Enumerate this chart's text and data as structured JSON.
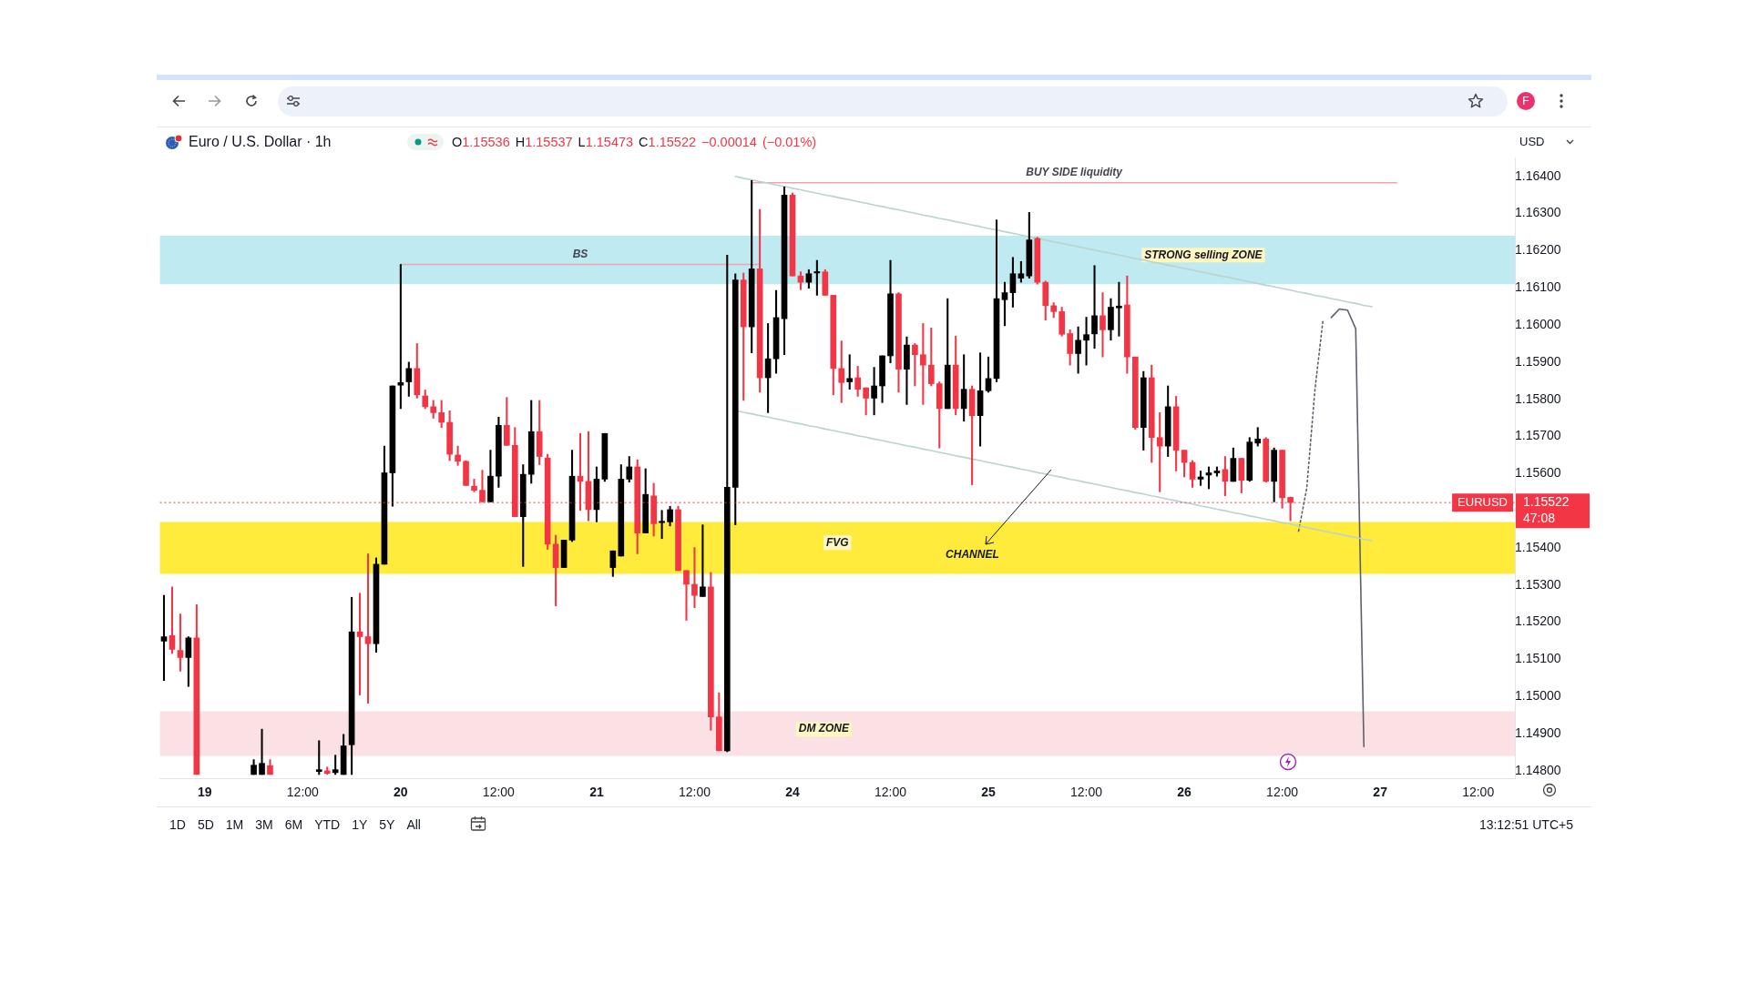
{
  "chart_data": {
    "type": "candlestick",
    "title": "Euro / U.S. Dollar · 1h",
    "subtitle": "O1.15536 H1.15537 L1.15473 C1.15522 −0.00014 (−0.01%)",
    "ylabel": "USD",
    "categories": [
      null,
      null,
      null,
      null,
      null,
      "19",
      null,
      null,
      null,
      null,
      null,
      null,
      null,
      null,
      null,
      null,
      null,
      "12:00",
      null,
      null,
      null,
      null,
      null,
      null,
      null,
      null,
      null,
      null,
      null,
      "20",
      null,
      null,
      null,
      null,
      null,
      null,
      null,
      null,
      null,
      null,
      null,
      "12:00",
      null,
      null,
      null,
      null,
      null,
      null,
      null,
      null,
      null,
      null,
      null,
      "21",
      null,
      null,
      null,
      null,
      null,
      null,
      null,
      null,
      null,
      null,
      null,
      "12:00",
      null,
      null,
      null,
      null,
      null,
      null,
      null,
      null,
      null,
      null,
      null,
      "24",
      null,
      null,
      null,
      null,
      null,
      null,
      null,
      null,
      null,
      null,
      null,
      "12:00",
      null,
      null,
      null,
      null,
      null,
      null,
      null,
      null,
      null,
      null,
      null,
      "25",
      null,
      null,
      null,
      null,
      null,
      null,
      null,
      null,
      null,
      null,
      null,
      "12:00",
      null,
      null,
      null,
      null,
      null,
      null,
      null,
      null,
      null,
      null,
      null,
      "26",
      null,
      null,
      null,
      null,
      null,
      null,
      null,
      null,
      null,
      null,
      null,
      "12:00",
      null,
      null,
      null,
      null,
      null,
      null,
      null,
      null,
      null,
      null,
      null,
      "27",
      null,
      null,
      null,
      null,
      null,
      null,
      null,
      null,
      null,
      null,
      null,
      "12:00",
      null,
      null,
      null,
      null
    ],
    "ohlc": [
      [
        1.15149,
        1.15272,
        1.15043,
        1.15161
      ],
      [
        1.15164,
        1.15295,
        1.15116,
        1.15127
      ],
      [
        1.15124,
        1.15222,
        1.15068,
        1.15105
      ],
      [
        1.15105,
        1.15161,
        1.15027,
        1.15158
      ],
      [
        1.15158,
        1.15247,
        1.1479,
        1.1479
      ],
      null,
      null,
      null,
      null,
      null,
      null,
      [
        1.1479,
        1.1483,
        1.1479,
        1.14815
      ],
      [
        1.1479,
        1.14912,
        1.1479,
        1.1482
      ],
      [
        1.14814,
        1.1483,
        1.1479,
        1.1479
      ],
      null,
      null,
      null,
      null,
      null,
      [
        1.14798,
        1.14881,
        1.1479,
        1.14803
      ],
      [
        1.148,
        1.1481,
        1.1479,
        1.14793
      ],
      [
        1.14795,
        1.14842,
        1.1479,
        1.14803
      ],
      [
        1.1479,
        1.14898,
        1.1479,
        1.14867
      ],
      [
        1.1487,
        1.15267,
        1.1479,
        1.15174
      ],
      [
        1.15174,
        1.15278,
        1.15004,
        1.15161
      ],
      [
        1.15161,
        1.15384,
        1.14982,
        1.15142
      ],
      [
        1.15142,
        1.15373,
        1.15119,
        1.15356
      ],
      [
        1.15356,
        1.15674,
        1.15356,
        1.15602
      ],
      [
        1.15602,
        1.15836,
        1.15512,
        1.15836
      ],
      [
        1.15838,
        1.16163,
        1.15775,
        1.15845
      ],
      [
        1.15847,
        1.159,
        1.15808,
        1.15883
      ],
      [
        1.15883,
        1.1595,
        1.15803,
        1.15812
      ],
      [
        1.15809,
        1.15825,
        1.15775,
        1.1578
      ],
      [
        1.1578,
        1.15797,
        1.15749,
        1.15764
      ],
      [
        1.15764,
        1.15797,
        1.15724,
        1.15738
      ],
      [
        1.15738,
        1.15769,
        1.15635,
        1.15652
      ],
      [
        1.1565,
        1.15674,
        1.15622,
        1.15633
      ],
      [
        1.15633,
        1.15635,
        1.15568,
        1.15568
      ],
      [
        1.15566,
        1.15585,
        1.15551,
        1.15555
      ],
      [
        1.15555,
        1.15609,
        1.15524,
        1.15524
      ],
      [
        1.15524,
        1.15663,
        1.15524,
        1.15593
      ],
      [
        1.15593,
        1.15752,
        1.15563,
        1.1573
      ],
      [
        1.1573,
        1.15805,
        1.15676,
        1.15676
      ],
      [
        1.15676,
        1.15724,
        1.15484,
        1.15484
      ],
      [
        1.15484,
        1.15624,
        1.1535,
        1.15598
      ],
      [
        1.15598,
        1.15797,
        1.15574,
        1.15713
      ],
      [
        1.15713,
        1.15797,
        1.15624,
        1.15646
      ],
      [
        1.15642,
        1.15652,
        1.15396,
        1.1541
      ],
      [
        1.1541,
        1.15434,
        1.15244,
        1.15347
      ],
      [
        1.15347,
        1.15421,
        1.15347,
        1.15421
      ],
      [
        1.15421,
        1.15663,
        1.15417,
        1.15593
      ],
      [
        1.15593,
        1.15708,
        1.15501,
        1.15579
      ],
      [
        1.15579,
        1.15713,
        1.15473,
        1.15503
      ],
      [
        1.15503,
        1.15618,
        1.1547,
        1.15585
      ],
      [
        1.15585,
        1.15708,
        1.15579,
        1.15708
      ],
      [
        1.15347,
        1.15392,
        1.15323,
        1.15392
      ],
      [
        1.15378,
        1.15624,
        1.15378,
        1.15585
      ],
      [
        1.15585,
        1.15646,
        1.15577,
        1.15618
      ],
      [
        1.15618,
        1.15637,
        1.15384,
        1.1544
      ],
      [
        1.1544,
        1.15613,
        1.1544,
        1.15544
      ],
      [
        1.1554,
        1.15574,
        1.15432,
        1.15465
      ],
      [
        1.15468,
        1.15501,
        1.15425,
        1.1547
      ],
      [
        1.1547,
        1.15512,
        1.15459,
        1.15503
      ],
      [
        1.15503,
        1.15512,
        1.15339,
        1.15339
      ],
      [
        1.15339,
        1.15339,
        1.15205,
        1.15302
      ],
      [
        1.15302,
        1.15401,
        1.15239,
        1.15272
      ],
      [
        1.15269,
        1.15462,
        1.15269,
        1.15295
      ],
      [
        1.15295,
        1.15334,
        1.14909,
        1.14945
      ],
      [
        1.14945,
        1.1501,
        1.14854,
        1.14854
      ],
      [
        1.14854,
        1.16188,
        1.14851,
        1.15563
      ],
      [
        1.15563,
        1.16138,
        1.15462,
        1.16121
      ],
      [
        1.16121,
        1.1614,
        1.15797,
        1.15995
      ],
      [
        1.15995,
        1.16389,
        1.15925,
        1.16151
      ],
      [
        1.16151,
        1.16311,
        1.15819,
        1.15858
      ],
      [
        1.15858,
        1.16004,
        1.15764,
        1.15909
      ],
      [
        1.15909,
        1.16093,
        1.1587,
        1.1602
      ],
      [
        1.16017,
        1.16372,
        1.1592,
        1.1635
      ],
      [
        1.1635,
        1.16355,
        1.16132,
        1.16132
      ],
      [
        1.16132,
        1.16143,
        1.16095,
        1.16115
      ],
      [
        1.16115,
        1.16149,
        1.16099,
        1.16138
      ],
      [
        1.1614,
        1.16174,
        1.1608,
        1.16143
      ],
      [
        1.16143,
        1.16149,
        1.1608,
        1.1608
      ],
      [
        1.1608,
        1.1608,
        1.15812,
        1.15883
      ],
      [
        1.15883,
        1.15957,
        1.15791,
        1.15845
      ],
      [
        1.15847,
        1.1592,
        1.15827,
        1.15856
      ],
      [
        1.15858,
        1.15889,
        1.15808,
        1.15827
      ],
      [
        1.15831,
        1.15831,
        1.15758,
        1.15803
      ],
      [
        1.15803,
        1.15886,
        1.15758,
        1.15836
      ],
      [
        1.15836,
        1.15917,
        1.15791,
        1.15917
      ],
      [
        1.15917,
        1.16174,
        1.15898,
        1.16084
      ],
      [
        1.16084,
        1.16087,
        1.15819,
        1.15881
      ],
      [
        1.15881,
        1.15968,
        1.15786,
        1.15946
      ],
      [
        1.15946,
        1.1595,
        1.15836,
        1.1592
      ],
      [
        1.1592,
        1.16004,
        1.15786,
        1.15892
      ],
      [
        1.15892,
        1.15992,
        1.15836,
        1.15842
      ],
      [
        1.15842,
        1.15847,
        1.15669,
        1.15775
      ],
      [
        1.15775,
        1.16071,
        1.15775,
        1.15892
      ],
      [
        1.15892,
        1.1597,
        1.15758,
        1.15775
      ],
      [
        1.15775,
        1.1592,
        1.15741,
        1.15827
      ],
      [
        1.15827,
        1.15836,
        1.1557,
        1.15756
      ],
      [
        1.15756,
        1.15925,
        1.15674,
        1.15823
      ],
      [
        1.15823,
        1.15914,
        1.15819,
        1.15856
      ],
      [
        1.15856,
        1.16283,
        1.15847,
        1.16071
      ],
      [
        1.16068,
        1.16115,
        1.15998,
        1.16087
      ],
      [
        1.16087,
        1.16182,
        1.16048,
        1.16138
      ],
      [
        1.16126,
        1.16171,
        1.16115,
        1.16138
      ],
      [
        1.16132,
        1.16303,
        1.16126,
        1.16229
      ],
      [
        1.16233,
        1.16236,
        1.1611,
        1.16115
      ],
      [
        1.16115,
        1.16118,
        1.16013,
        1.16052
      ],
      [
        1.16052,
        1.1606,
        1.1602,
        1.16036
      ],
      [
        1.16036,
        1.16048,
        1.1597,
        1.15975
      ],
      [
        1.15977,
        1.15987,
        1.15892,
        1.15923
      ],
      [
        1.15923,
        1.15995,
        1.1587,
        1.15959
      ],
      [
        1.15959,
        1.16021,
        1.15892,
        1.15974
      ],
      [
        1.15976,
        1.1616,
        1.15937,
        1.16025
      ],
      [
        1.16025,
        1.16087,
        1.15914,
        1.15987
      ],
      [
        1.15987,
        1.16071,
        1.15959,
        1.16048
      ],
      [
        1.16046,
        1.16115,
        1.1597,
        1.16051
      ],
      [
        1.16054,
        1.16132,
        1.1587,
        1.15914
      ],
      [
        1.15914,
        1.15914,
        1.15719,
        1.15724
      ],
      [
        1.15724,
        1.15875,
        1.15663,
        1.15858
      ],
      [
        1.15858,
        1.15892,
        1.1563,
        1.15697
      ],
      [
        1.15697,
        1.15764,
        1.15551,
        1.15674
      ],
      [
        1.15674,
        1.15836,
        1.15646,
        1.1578
      ],
      [
        1.1578,
        1.15808,
        1.15607,
        1.15663
      ],
      [
        1.15663,
        1.15663,
        1.15591,
        1.1563
      ],
      [
        1.1563,
        1.15635,
        1.15563,
        1.15585
      ],
      [
        1.15585,
        1.15607,
        1.15568,
        1.15591
      ],
      [
        1.15596,
        1.15618,
        1.15559,
        1.15602
      ],
      [
        1.15602,
        1.15618,
        1.15593,
        1.15607
      ],
      [
        1.15611,
        1.15646,
        1.1554,
        1.15579
      ],
      [
        1.15579,
        1.15669,
        1.15579,
        1.15641
      ],
      [
        1.15641,
        1.15641,
        1.15548,
        1.15582
      ],
      [
        1.15582,
        1.15697,
        1.15579,
        1.15685
      ],
      [
        1.15682,
        1.15724,
        1.15674,
        1.15693
      ],
      [
        1.15693,
        1.15697,
        1.15577,
        1.15579
      ],
      [
        1.15579,
        1.15669,
        1.15524,
        1.15663
      ],
      [
        1.15663,
        1.15663,
        1.15507,
        1.15535
      ],
      [
        1.15536,
        1.15537,
        1.15473,
        1.15522
      ],
      null,
      null,
      null,
      null,
      null,
      null,
      null,
      null,
      null,
      null,
      null,
      null,
      null,
      null,
      null,
      null,
      null,
      null,
      null,
      null,
      null,
      null,
      null,
      null,
      null,
      null,
      null
    ],
    "colors": [
      "#000000",
      "#f23645",
      "#f23645",
      "#000000",
      "#f23645",
      null,
      null,
      null,
      null,
      null,
      null,
      "#000000",
      "#000000",
      "#f23645",
      null,
      null,
      null,
      null,
      null,
      "#000000",
      "#f23645",
      "#000000",
      "#000000",
      "#000000",
      "#f23645",
      "#f23645",
      "#000000",
      "#000000",
      "#000000",
      "#000000",
      "#000000",
      "#f23645",
      "#f23645",
      "#f23645",
      "#f23645",
      "#f23645",
      "#f23645",
      "#f23645",
      "#f23645",
      "#f23645",
      "#000000",
      "#000000",
      "#f23645",
      "#f23645",
      "#000000",
      "#000000",
      "#f23645",
      "#f23645",
      "#f23645",
      "#000000",
      "#000000",
      "#f23645",
      "#f23645",
      "#000000",
      "#000000",
      "#000000",
      "#000000",
      "#000000",
      "#f23645",
      "#000000",
      "#f23645",
      "#000000",
      "#000000",
      "#f23645",
      "#f23645",
      "#f23645",
      "#000000",
      "#f23645",
      "#f23645",
      "#000000",
      "#000000",
      "#f23645",
      "#000000",
      "#f23645",
      "#000000",
      "#000000",
      "#000000",
      "#f23645",
      "#f23645",
      "#000000",
      "#000000",
      "#f23645",
      "#f23645",
      "#f23645",
      "#000000",
      "#f23645",
      "#f23645",
      "#000000",
      "#000000",
      "#000000",
      "#f23645",
      "#000000",
      "#f23645",
      "#f23645",
      "#f23645",
      "#f23645",
      "#000000",
      "#f23645",
      "#000000",
      "#f23645",
      "#000000",
      "#000000",
      "#000000",
      "#000000",
      "#000000",
      "#000000",
      "#000000",
      "#f23645",
      "#f23645",
      "#f23645",
      "#f23645",
      "#f23645",
      "#000000",
      "#000000",
      "#000000",
      "#f23645",
      "#000000",
      "#000000",
      "#f23645",
      "#f23645",
      "#000000",
      "#f23645",
      "#f23645",
      "#000000",
      "#f23645",
      "#f23645",
      "#f23645",
      "#000000",
      "#000000",
      "#000000",
      "#f23645",
      "#000000",
      "#f23645",
      "#000000",
      "#000000",
      "#f23645",
      "#000000",
      "#f23645",
      "#f23645",
      null,
      null,
      null,
      null,
      null,
      null,
      null,
      null,
      null,
      null,
      null,
      null,
      null,
      null,
      null,
      null,
      null,
      null,
      null,
      null,
      null,
      null,
      null,
      null,
      null,
      null,
      null
    ],
    "series": [
      {
        "type": "line",
        "color": "#b9d3cf",
        "values": [
          null,
          null,
          null,
          null,
          null,
          null,
          null,
          null,
          null,
          null,
          null,
          null,
          null,
          null,
          null,
          null,
          null,
          null,
          null,
          null,
          null,
          null,
          null,
          null,
          null,
          null,
          null,
          null,
          null,
          null,
          null,
          null,
          null,
          null,
          null,
          null,
          null,
          null,
          null,
          null,
          null,
          null,
          null,
          null,
          null,
          null,
          null,
          null,
          null,
          null,
          null,
          null,
          null,
          null,
          null,
          null,
          null,
          null,
          null,
          null,
          null,
          null,
          null,
          null,
          null,
          null,
          null,
          null,
          null,
          null,
          1.164,
          1.16395,
          1.16391,
          1.16386,
          1.16382,
          1.16377,
          1.16373,
          1.16368,
          1.16364,
          1.16359,
          1.16355,
          1.1635,
          1.16346,
          1.16341,
          1.16337,
          1.16332,
          1.16328,
          1.16323,
          1.16319,
          1.16314,
          1.1631,
          1.16305,
          1.16301,
          1.16296,
          1.16292,
          1.16287,
          1.16283,
          1.16278,
          1.16274,
          1.16269,
          1.16265,
          1.1626,
          1.16256,
          1.16251,
          1.16247,
          1.16242,
          1.16238,
          1.16233,
          1.16229,
          1.16224,
          1.1622,
          1.16215,
          1.16211,
          1.16206,
          1.16202,
          1.16197,
          1.16193,
          1.16188,
          1.16184,
          1.16179,
          1.16175,
          1.1617,
          1.16166,
          1.16161,
          1.16157,
          1.16152,
          1.16148,
          1.16143,
          1.16139,
          1.16134,
          1.1613,
          1.16125,
          1.16121,
          1.16116,
          1.16112,
          1.16107,
          1.16103,
          1.16098,
          1.16094,
          1.16089,
          1.16085,
          1.1608,
          1.16076,
          1.16071,
          1.16067,
          1.16062,
          1.16058,
          1.16053,
          1.16049,
          null,
          null,
          null,
          null,
          null,
          null,
          null,
          null,
          null,
          null,
          null,
          null,
          null,
          null,
          null,
          null,
          null
        ]
      },
      {
        "type": "line",
        "color": "#b9d3cf",
        "values": [
          null,
          null,
          null,
          null,
          null,
          null,
          null,
          null,
          null,
          null,
          null,
          null,
          null,
          null,
          null,
          null,
          null,
          null,
          null,
          null,
          null,
          null,
          null,
          null,
          null,
          null,
          null,
          null,
          null,
          null,
          null,
          null,
          null,
          null,
          null,
          null,
          null,
          null,
          null,
          null,
          null,
          null,
          null,
          null,
          null,
          null,
          null,
          null,
          null,
          null,
          null,
          null,
          null,
          null,
          null,
          null,
          null,
          null,
          null,
          null,
          null,
          null,
          null,
          null,
          null,
          null,
          null,
          null,
          null,
          null,
          1.1577,
          1.15765,
          1.15761,
          1.15756,
          1.15752,
          1.15747,
          1.15743,
          1.15738,
          1.15734,
          1.15729,
          1.15725,
          1.1572,
          1.15716,
          1.15711,
          1.15707,
          1.15702,
          1.15698,
          1.15693,
          1.15689,
          1.15684,
          1.1568,
          1.15675,
          1.15671,
          1.15666,
          1.15662,
          1.15657,
          1.15653,
          1.15648,
          1.15644,
          1.15639,
          1.15635,
          1.1563,
          1.15626,
          1.15621,
          1.15617,
          1.15612,
          1.15608,
          1.15603,
          1.15599,
          1.15594,
          1.1559,
          1.15585,
          1.15581,
          1.15576,
          1.15572,
          1.15567,
          1.15563,
          1.15558,
          1.15554,
          1.15549,
          1.15545,
          1.1554,
          1.15536,
          1.15531,
          1.15527,
          1.15522,
          1.15518,
          1.15513,
          1.15509,
          1.15504,
          1.155,
          1.15495,
          1.15491,
          1.15486,
          1.15482,
          1.15477,
          1.15473,
          1.15468,
          1.15464,
          1.15459,
          1.15455,
          1.1545,
          1.15446,
          1.15441,
          1.15437,
          1.15432,
          1.15428,
          1.15423,
          1.15419,
          null,
          null,
          null,
          null,
          null,
          null,
          null,
          null,
          null,
          null,
          null,
          null,
          null,
          null,
          null,
          null,
          null
        ]
      },
      {
        "type": "line",
        "name": "BS",
        "color": "#f1a3ae",
        "values": [
          null,
          null,
          null,
          null,
          null,
          null,
          null,
          null,
          null,
          null,
          null,
          null,
          null,
          null,
          null,
          null,
          null,
          null,
          null,
          null,
          null,
          null,
          null,
          null,
          null,
          null,
          null,
          null,
          null,
          1.16163,
          1.16163,
          1.16163,
          1.16163,
          1.16163,
          1.16163,
          1.16163,
          1.16163,
          1.16163,
          1.16163,
          1.16163,
          1.16163,
          1.16163,
          1.16163,
          1.16163,
          1.16163,
          1.16163,
          1.16163,
          1.16163,
          1.16163,
          1.16163,
          1.16163,
          1.16163,
          1.16163,
          1.16163,
          1.16163,
          1.16163,
          1.16163,
          1.16163,
          1.16163,
          1.16163,
          1.16163,
          1.16163,
          1.16163,
          1.16163,
          1.16163,
          1.16163,
          1.16163,
          1.16163,
          1.16163,
          1.16163,
          1.16163,
          1.16163,
          1.16163,
          1.16163,
          null,
          null,
          null,
          null,
          null,
          null,
          null,
          null,
          null,
          null,
          null,
          null,
          null,
          null,
          null,
          null,
          null,
          null,
          null,
          null,
          null,
          null,
          null,
          null,
          null,
          null,
          null,
          null,
          null,
          null,
          null,
          null,
          null,
          null,
          null,
          null,
          null,
          null,
          null,
          null,
          null,
          null,
          null,
          null,
          null,
          null,
          null,
          null,
          null,
          null,
          null,
          null,
          null,
          null,
          null,
          null,
          null,
          null,
          null,
          null,
          null,
          null,
          null,
          null,
          null,
          null,
          null,
          null,
          null,
          null,
          null,
          null,
          null,
          null,
          null,
          null,
          null,
          null,
          null,
          null,
          null,
          null,
          null,
          null,
          null,
          null,
          null,
          null,
          null,
          null,
          null,
          null
        ]
      },
      {
        "type": "line",
        "name": "BUY SIDE liquidity",
        "color": "#f1a3ae",
        "values": [
          null,
          null,
          null,
          null,
          null,
          null,
          null,
          null,
          null,
          null,
          null,
          null,
          null,
          null,
          null,
          null,
          null,
          null,
          null,
          null,
          null,
          null,
          null,
          null,
          null,
          null,
          null,
          null,
          null,
          null,
          null,
          null,
          null,
          null,
          null,
          null,
          null,
          null,
          null,
          null,
          null,
          null,
          null,
          null,
          null,
          null,
          null,
          null,
          null,
          null,
          null,
          null,
          null,
          null,
          null,
          null,
          null,
          null,
          null,
          null,
          null,
          null,
          null,
          null,
          null,
          null,
          null,
          null,
          null,
          null,
          null,
          null,
          1.16383,
          1.16383,
          1.16383,
          1.16383,
          1.16383,
          1.16383,
          1.16383,
          1.16383,
          1.16383,
          1.16383,
          1.16383,
          1.16383,
          1.16383,
          1.16383,
          1.16383,
          1.16383,
          1.16383,
          1.16383,
          1.16383,
          1.16383,
          1.16383,
          1.16383,
          1.16383,
          1.16383,
          1.16383,
          1.16383,
          1.16383,
          1.16383,
          1.16383,
          1.16383,
          1.16383,
          1.16383,
          1.16383,
          1.16383,
          1.16383,
          1.16383,
          1.16383,
          1.16383,
          1.16383,
          1.16383,
          1.16383,
          1.16383,
          1.16383,
          1.16383,
          1.16383,
          1.16383,
          1.16383,
          1.16383,
          1.16383,
          1.16383,
          1.16383,
          1.16383,
          1.16383,
          1.16383,
          1.16383,
          1.16383,
          1.16383,
          1.16383,
          1.16383,
          1.16383,
          1.16383,
          1.16383,
          1.16383,
          1.16383,
          1.16383,
          1.16383,
          1.16383,
          1.16383,
          1.16383,
          1.16383,
          1.16383,
          1.16383,
          1.16383,
          1.16383,
          1.16383,
          1.16383,
          1.16383,
          1.16383,
          1.16383,
          1.16383,
          null,
          null,
          null,
          null,
          null,
          null,
          null,
          null,
          null,
          null,
          null,
          null,
          null,
          null
        ]
      },
      {
        "type": "line",
        "color": "#5d606b",
        "line_style": "dotted",
        "values": [
          null,
          null,
          null,
          null,
          null,
          null,
          null,
          null,
          null,
          null,
          null,
          null,
          null,
          null,
          null,
          null,
          null,
          null,
          null,
          null,
          null,
          null,
          null,
          null,
          null,
          null,
          null,
          null,
          null,
          null,
          null,
          null,
          null,
          null,
          null,
          null,
          null,
          null,
          null,
          null,
          null,
          null,
          null,
          null,
          null,
          null,
          null,
          null,
          null,
          null,
          null,
          null,
          null,
          null,
          null,
          null,
          null,
          null,
          null,
          null,
          null,
          null,
          null,
          null,
          null,
          null,
          null,
          null,
          null,
          null,
          null,
          null,
          null,
          null,
          null,
          null,
          null,
          null,
          null,
          null,
          null,
          null,
          null,
          null,
          null,
          null,
          null,
          null,
          null,
          null,
          null,
          null,
          null,
          null,
          null,
          null,
          null,
          null,
          null,
          null,
          null,
          null,
          null,
          null,
          null,
          null,
          null,
          null,
          null,
          null,
          null,
          null,
          null,
          null,
          null,
          null,
          null,
          null,
          null,
          null,
          null,
          null,
          null,
          null,
          null,
          null,
          null,
          null,
          null,
          null,
          null,
          null,
          null,
          null,
          null,
          null,
          null,
          null,
          null,
          1.15445,
          1.1556,
          1.15825,
          1.16015,
          null,
          null,
          null,
          null,
          null,
          null,
          null,
          null,
          null,
          null,
          null,
          null,
          null,
          null,
          null,
          null,
          null,
          null,
          null,
          null,
          null,
          null,
          null
        ]
      },
      {
        "type": "line",
        "color": "#5d606b",
        "values": [
          null,
          null,
          null,
          null,
          null,
          null,
          null,
          null,
          null,
          null,
          null,
          null,
          null,
          null,
          null,
          null,
          null,
          null,
          null,
          null,
          null,
          null,
          null,
          null,
          null,
          null,
          null,
          null,
          null,
          null,
          null,
          null,
          null,
          null,
          null,
          null,
          null,
          null,
          null,
          null,
          null,
          null,
          null,
          null,
          null,
          null,
          null,
          null,
          null,
          null,
          null,
          null,
          null,
          null,
          null,
          null,
          null,
          null,
          null,
          null,
          null,
          null,
          null,
          null,
          null,
          null,
          null,
          null,
          null,
          null,
          null,
          null,
          null,
          null,
          null,
          null,
          null,
          null,
          null,
          null,
          null,
          null,
          null,
          null,
          null,
          null,
          null,
          null,
          null,
          null,
          null,
          null,
          null,
          null,
          null,
          null,
          null,
          null,
          null,
          null,
          null,
          null,
          null,
          null,
          null,
          null,
          null,
          null,
          null,
          null,
          null,
          null,
          null,
          null,
          null,
          null,
          null,
          null,
          null,
          null,
          null,
          null,
          null,
          null,
          null,
          null,
          null,
          null,
          null,
          null,
          null,
          null,
          null,
          null,
          null,
          null,
          null,
          null,
          null,
          null,
          null,
          null,
          null,
          1.1602,
          1.16043,
          1.1604,
          1.1599,
          1.14865,
          null,
          null,
          null,
          null,
          null,
          null,
          null,
          null,
          null,
          null,
          null,
          null,
          null,
          null,
          null,
          null,
          null,
          null
        ]
      }
    ],
    "ylim": [
      1.1478,
      1.1645
    ],
    "yticks": [
      {
        "value": 1.148,
        "label": "1.14800"
      },
      {
        "value": 1.149,
        "label": "1.14900"
      },
      {
        "value": 1.15,
        "label": "1.15000"
      },
      {
        "value": 1.151,
        "label": "1.15100"
      },
      {
        "value": 1.152,
        "label": "1.15200"
      },
      {
        "value": 1.153,
        "label": "1.15300"
      },
      {
        "value": 1.154,
        "label": "1.15400"
      },
      {
        "value": 1.156,
        "label": "1.15600"
      },
      {
        "value": 1.157,
        "label": "1.15700"
      },
      {
        "value": 1.158,
        "label": "1.15800"
      },
      {
        "value": 1.159,
        "label": "1.15900"
      },
      {
        "value": 1.16,
        "label": "1.16000"
      },
      {
        "value": 1.161,
        "label": "1.16100"
      },
      {
        "value": 1.162,
        "label": "1.16200"
      },
      {
        "value": 1.163,
        "label": "1.16300"
      },
      {
        "value": 1.164,
        "label": "1.16400"
      }
    ],
    "ref_lines": [
      {
        "axis": "y",
        "value": 1.15522,
        "label": "EURUSD",
        "color": "#f23645",
        "line_style": "dotted"
      }
    ],
    "bands": [
      {
        "axis": "y",
        "from": 1.1611,
        "to": 1.1624,
        "label": "STRONG selling ZONE",
        "color": "#bfeaf1"
      },
      {
        "axis": "y",
        "from": 1.1533,
        "to": 1.1547,
        "label": "FVG",
        "color": "#ffeb3b"
      },
      {
        "axis": "y",
        "from": 1.1484,
        "to": 1.1496,
        "label": "DM ZONE",
        "color": "#fbe1e4"
      }
    ],
    "annotations": [
      "CHANNEL",
      "1.15522",
      "47:08",
      "1D 5D 1M 3M 6M YTD 1Y 5Y All",
      "13:12:51 UTC+5",
      "F"
    ]
  }
}
